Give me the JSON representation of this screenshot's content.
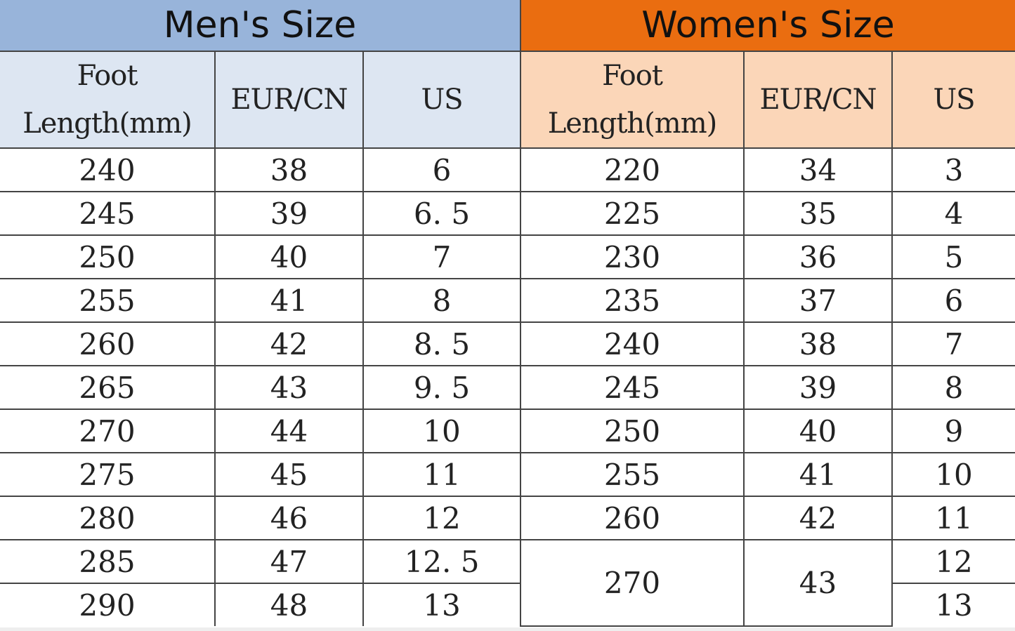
{
  "men": {
    "title": "Men's Size",
    "headers": [
      "Foot Length(mm)",
      "EUR/CN",
      "US"
    ],
    "rows": [
      [
        "240",
        "38",
        "6"
      ],
      [
        "245",
        "39",
        "6. 5"
      ],
      [
        "250",
        "40",
        "7"
      ],
      [
        "255",
        "41",
        "8"
      ],
      [
        "260",
        "42",
        "8. 5"
      ],
      [
        "265",
        "43",
        "9. 5"
      ],
      [
        "270",
        "44",
        "10"
      ],
      [
        "275",
        "45",
        "11"
      ],
      [
        "280",
        "46",
        "12"
      ],
      [
        "285",
        "47",
        "12. 5"
      ],
      [
        "290",
        "48",
        "13"
      ]
    ]
  },
  "women": {
    "title": "Women's Size",
    "headers": [
      "Foot Length(mm)",
      "EUR/CN",
      "US"
    ],
    "rows": [
      [
        "220",
        "34",
        "3"
      ],
      [
        "225",
        "35",
        "4"
      ],
      [
        "230",
        "36",
        "5"
      ],
      [
        "235",
        "37",
        "6"
      ],
      [
        "240",
        "38",
        "7"
      ],
      [
        "245",
        "39",
        "8"
      ],
      [
        "250",
        "40",
        "9"
      ],
      [
        "255",
        "41",
        "10"
      ],
      [
        "260",
        "42",
        "11"
      ]
    ],
    "merged_row": {
      "foot_length": "270",
      "eur_cn": "43",
      "us": [
        "12",
        "13"
      ]
    }
  },
  "colors": {
    "men_title": "#98b4da",
    "men_header": "#dde6f2",
    "women_title": "#ea6d10",
    "women_header": "#fbd6b8"
  }
}
